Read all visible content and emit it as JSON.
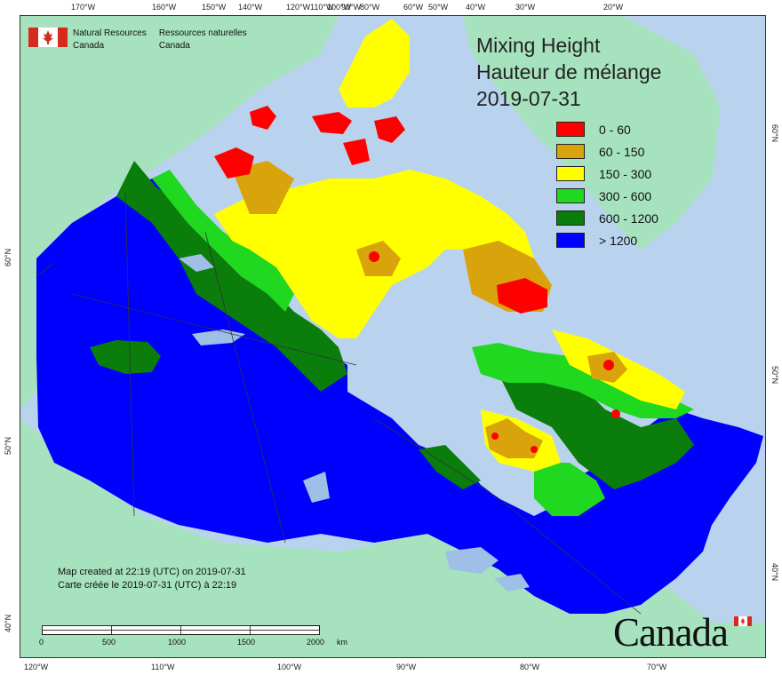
{
  "title": {
    "line1": "Mixing Height",
    "line2": "Hauteur de mélange",
    "date": "2019-07-31"
  },
  "legend": {
    "items": [
      {
        "label": "0 - 60",
        "color": "#ff0000"
      },
      {
        "label": "60 - 150",
        "color": "#d9a30c"
      },
      {
        "label": "150 - 300",
        "color": "#ffff00"
      },
      {
        "label": "300 - 600",
        "color": "#1fd81f"
      },
      {
        "label": "600 - 1200",
        "color": "#0a7d0a"
      },
      {
        "label": "> 1200",
        "color": "#0000ff"
      }
    ]
  },
  "agency": {
    "en_line1": "Natural Resources",
    "en_line2": "Canada",
    "fr_line1": "Ressources naturelles",
    "fr_line2": "Canada"
  },
  "created": {
    "en": "Map created at 22:19 (UTC) on 2019-07-31",
    "fr": "Carte créée le 2019-07-31 (UTC) à 22:19"
  },
  "scale": {
    "labels": [
      "0",
      "500",
      "1000",
      "1500",
      "2000"
    ],
    "unit": "km"
  },
  "wordmark": "Canada",
  "ticks": {
    "top": [
      "170°W",
      "160°W",
      "150°W",
      "140°W",
      "120°W",
      "110°W",
      "100°W",
      "90°W",
      "80°W",
      "60°W",
      "50°W",
      "40°W",
      "30°W",
      "20°W"
    ],
    "bottom": [
      "120°W",
      "110°W",
      "100°W",
      "90°W",
      "80°W",
      "70°W"
    ],
    "left": [
      "60°N",
      "50°N",
      "40°N"
    ],
    "right": [
      "60°N",
      "50°N",
      "40°N"
    ]
  },
  "colors": {
    "ocean": "#b9d3ee",
    "land_other": "#a6e2bd",
    "lake": "#9fbfe6"
  }
}
